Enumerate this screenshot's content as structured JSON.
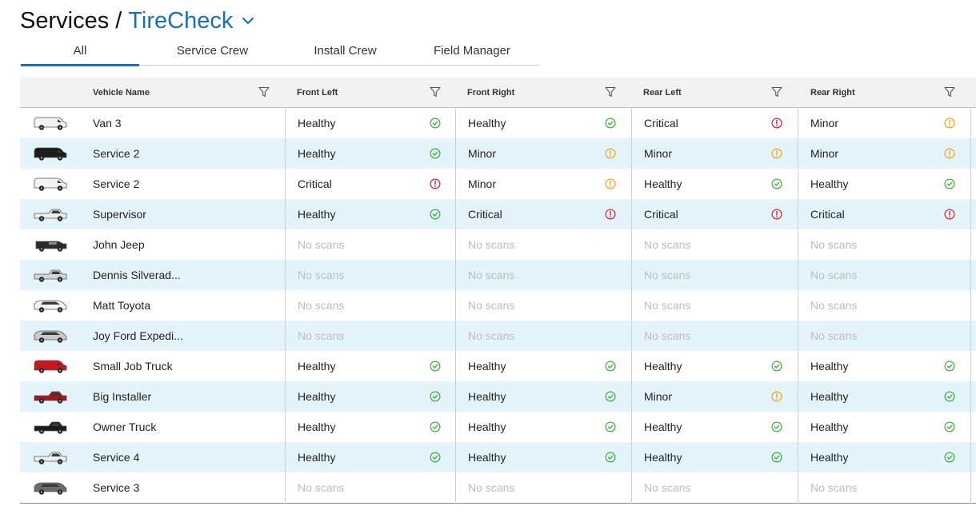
{
  "breadcrumb": {
    "root": "Services",
    "separator": "/",
    "current": "TireCheck"
  },
  "tabs": [
    "All",
    "Service Crew",
    "Install Crew",
    "Field Manager"
  ],
  "active_tab": 0,
  "columns": [
    "Vehicle Name",
    "Front Left",
    "Front Right",
    "Rear Left",
    "Rear Right"
  ],
  "colors": {
    "healthy": "#3cab3c",
    "minor": "#f0a21e",
    "critical": "#d6212c",
    "accent": "#1a6fb3",
    "row_alt": "#e3f5fb"
  },
  "rows": [
    {
      "vehicle": "Van 3",
      "vehicle_icon": "white-van-icon",
      "vehicle_color": "#f2f2f2",
      "tires": [
        "Healthy",
        "Healthy",
        "Critical",
        "Minor"
      ]
    },
    {
      "vehicle": "Service 2",
      "vehicle_icon": "black-van-icon",
      "vehicle_color": "#1b1b1b",
      "tires": [
        "Healthy",
        "Minor",
        "Minor",
        "Minor"
      ]
    },
    {
      "vehicle": "Service 2",
      "vehicle_icon": "white-van-icon",
      "vehicle_color": "#f2f2f2",
      "tires": [
        "Critical",
        "Minor",
        "Healthy",
        "Healthy"
      ]
    },
    {
      "vehicle": "Supervisor",
      "vehicle_icon": "white-pickup-icon",
      "vehicle_color": "#eeeeee",
      "tires": [
        "Healthy",
        "Critical",
        "Critical",
        "Critical"
      ]
    },
    {
      "vehicle": "John Jeep",
      "vehicle_icon": "black-jeep-icon",
      "vehicle_color": "#2a2a2a",
      "tires": [
        "No scans",
        "No scans",
        "No scans",
        "No scans"
      ]
    },
    {
      "vehicle": "Dennis Silverad...",
      "vehicle_icon": "silver-pickup-icon",
      "vehicle_color": "#d7d7d7",
      "tires": [
        "No scans",
        "No scans",
        "No scans",
        "No scans"
      ]
    },
    {
      "vehicle": "Matt Toyota",
      "vehicle_icon": "white-minivan-icon",
      "vehicle_color": "#f4f4f4",
      "tires": [
        "No scans",
        "No scans",
        "No scans",
        "No scans"
      ]
    },
    {
      "vehicle": "Joy Ford Expedi...",
      "vehicle_icon": "silver-suv-icon",
      "vehicle_color": "#c9c9c9",
      "tires": [
        "No scans",
        "No scans",
        "No scans",
        "No scans"
      ]
    },
    {
      "vehicle": "Small Job Truck",
      "vehicle_icon": "red-van-icon",
      "vehicle_color": "#c8161d",
      "tires": [
        "Healthy",
        "Healthy",
        "Healthy",
        "Healthy"
      ]
    },
    {
      "vehicle": "Big Installer",
      "vehicle_icon": "red-pickup-icon",
      "vehicle_color": "#a8141b",
      "tires": [
        "Healthy",
        "Healthy",
        "Minor",
        "Healthy"
      ]
    },
    {
      "vehicle": "Owner Truck",
      "vehicle_icon": "black-pickup-icon",
      "vehicle_color": "#1b1b1b",
      "tires": [
        "Healthy",
        "Healthy",
        "Healthy",
        "Healthy"
      ]
    },
    {
      "vehicle": "Service 4",
      "vehicle_icon": "white-pickup-icon",
      "vehicle_color": "#eeeeee",
      "tires": [
        "Healthy",
        "Healthy",
        "Healthy",
        "Healthy"
      ]
    },
    {
      "vehicle": "Service 3",
      "vehicle_icon": "gray-minivan-icon",
      "vehicle_color": "#6c6c6c",
      "tires": [
        "No scans",
        "No scans",
        "No scans",
        "No scans"
      ]
    }
  ]
}
